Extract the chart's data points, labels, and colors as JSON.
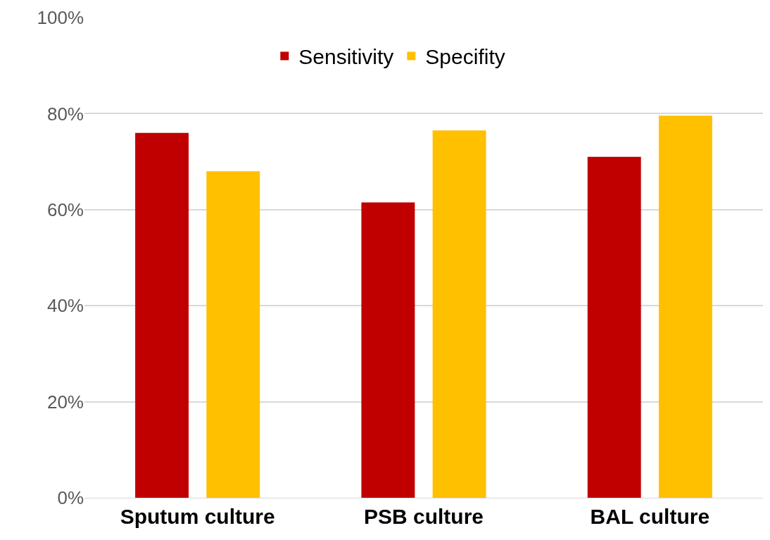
{
  "chart_data": {
    "type": "bar",
    "categories": [
      "Sputum culture",
      "PSB culture",
      "BAL culture"
    ],
    "series": [
      {
        "name": "Sensitivity",
        "color": "#c00000",
        "values": [
          76,
          61.5,
          71
        ]
      },
      {
        "name": "Specifity",
        "color": "#ffc000",
        "values": [
          68,
          76.5,
          79.6
        ]
      }
    ],
    "ylim": [
      0,
      100
    ],
    "yticks": [
      {
        "value": 0,
        "label": "0%"
      },
      {
        "value": 20,
        "label": "20%"
      },
      {
        "value": 40,
        "label": "40%"
      },
      {
        "value": 60,
        "label": "60%"
      },
      {
        "value": 80,
        "label": "80%"
      },
      {
        "value": 100,
        "label": "100%"
      }
    ],
    "grid": "y",
    "legend": "top"
  }
}
